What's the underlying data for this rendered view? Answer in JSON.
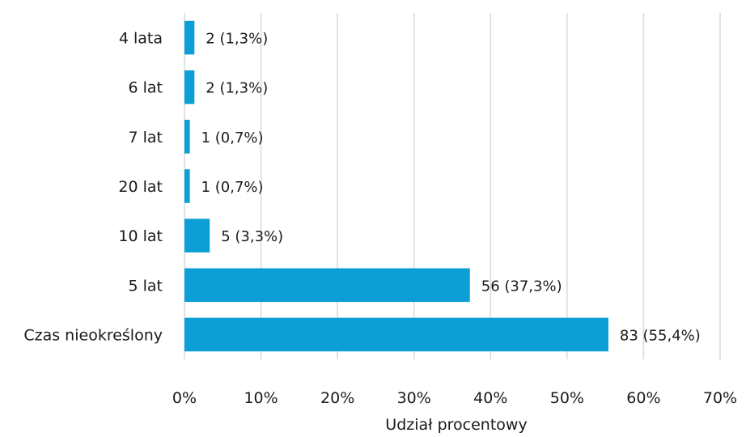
{
  "chart_data": {
    "type": "bar",
    "orientation": "horizontal",
    "categories": [
      "4 lata",
      "6 lat",
      "7 lat",
      "20 lat",
      "10 lat",
      "5 lat",
      "Czas nieokreślony"
    ],
    "values": [
      1.3,
      1.3,
      0.7,
      0.7,
      3.3,
      37.3,
      55.4
    ],
    "data_labels": [
      "2 (1,3%)",
      "2 (1,3%)",
      "1 (0,7%)",
      "1 (0,7%)",
      "5 (3,3%)",
      "56 (37,3%)",
      "83 (55,4%)"
    ],
    "title": "",
    "xlabel": "Udział procentowy",
    "ylabel": "",
    "xlim": [
      0,
      70
    ],
    "x_ticks": [
      0,
      10,
      20,
      30,
      40,
      50,
      60,
      70
    ],
    "x_tick_labels": [
      "0%",
      "10%",
      "20%",
      "30%",
      "40%",
      "50%",
      "60%",
      "70%"
    ],
    "grid": "vertical",
    "legend": "none",
    "colors": {
      "bar": "#0c9fd6",
      "grid": "#d9d9d9",
      "text": "#1a1a1a"
    }
  }
}
